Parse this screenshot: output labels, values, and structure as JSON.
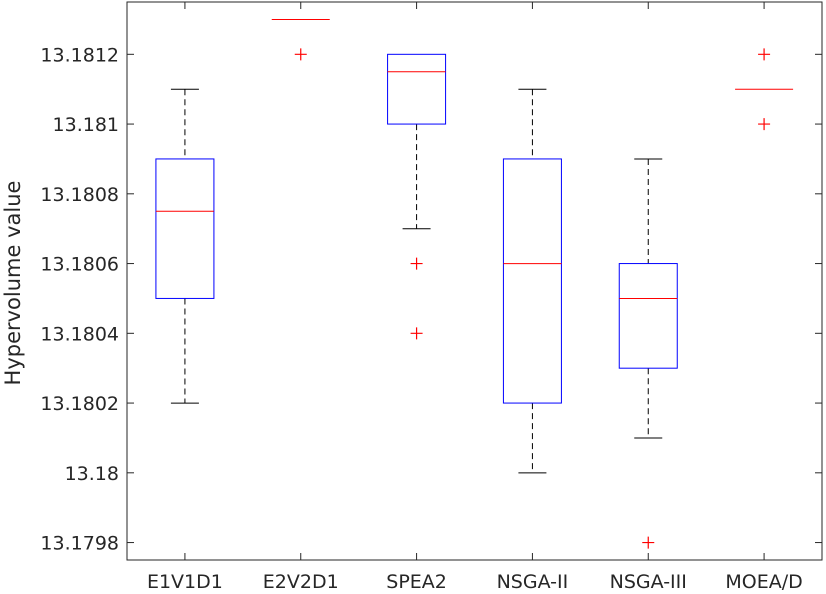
{
  "chart_data": {
    "type": "box",
    "title": "",
    "xlabel": "",
    "ylabel": "Hypervolume value",
    "ylim": [
      13.17975,
      13.18135
    ],
    "yticks": [
      13.1798,
      13.18,
      13.1802,
      13.1804,
      13.1806,
      13.1808,
      13.181,
      13.1812
    ],
    "ytick_labels": [
      "13.1798",
      "13.18",
      "13.1802",
      "13.1804",
      "13.1806",
      "13.1808",
      "13.181",
      "13.1812"
    ],
    "categories": [
      "E1V1D1",
      "E2V2D1",
      "SPEA2",
      "NSGA-II",
      "NSGA-III",
      "MOEA/D"
    ],
    "boxes": [
      {
        "q1": 13.1805,
        "median": 13.18075,
        "q3": 13.1809,
        "whisker_low": 13.1802,
        "whisker_high": 13.1811,
        "outliers": []
      },
      {
        "q1": 13.1813,
        "median": 13.1813,
        "q3": 13.1813,
        "whisker_low": 13.1813,
        "whisker_high": 13.1813,
        "outliers": [
          13.1812
        ]
      },
      {
        "q1": 13.181,
        "median": 13.18115,
        "q3": 13.1812,
        "whisker_low": 13.1807,
        "whisker_high": 13.1812,
        "outliers": [
          13.1806,
          13.1804
        ]
      },
      {
        "q1": 13.1802,
        "median": 13.1806,
        "q3": 13.1809,
        "whisker_low": 13.18,
        "whisker_high": 13.1811,
        "outliers": []
      },
      {
        "q1": 13.1803,
        "median": 13.1805,
        "q3": 13.1806,
        "whisker_low": 13.1801,
        "whisker_high": 13.1809,
        "outliers": [
          13.1798
        ]
      },
      {
        "q1": 13.1811,
        "median": 13.1811,
        "q3": 13.1811,
        "whisker_low": 13.1811,
        "whisker_high": 13.1811,
        "outliers": [
          13.1812,
          13.181
        ]
      }
    ],
    "grid": false,
    "colors": {
      "box": "#0000ff",
      "median": "#ff0000",
      "whisker": "#000000",
      "outlier": "#ff0000",
      "axis": "#262626"
    }
  }
}
